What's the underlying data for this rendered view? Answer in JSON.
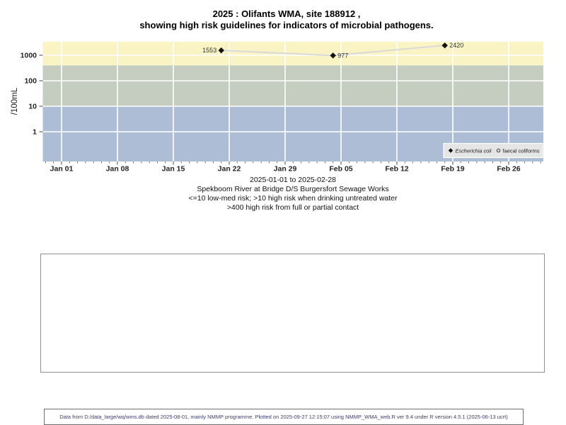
{
  "title": {
    "line1": "2025 : Olifants WMA, site 188912 ,",
    "line2": "showing high risk guidelines for indicators of microbial pathogens."
  },
  "chart_data": {
    "type": "scatter",
    "yscale": "log",
    "ylabel": "/100mL",
    "yticks": [
      1000,
      100,
      10,
      1
    ],
    "xticks": [
      "Jan 01",
      "Jan 08",
      "Jan 15",
      "Jan 22",
      "Jan 29",
      "Feb 05",
      "Feb 12",
      "Feb 19",
      "Feb 26"
    ],
    "x_range": "2025-01-01 to 2025-02-28",
    "grid": true,
    "legend_position": "bottom-right",
    "series": [
      {
        "name": "Escherichia coli",
        "marker": "filled-diamond",
        "line_color": "#d9d9d9",
        "point_color": "#111111",
        "points": [
          {
            "date": "2025-01-21",
            "value": 1553
          },
          {
            "date": "2025-02-04",
            "value": 977
          },
          {
            "date": "2025-02-18",
            "value": 2420
          }
        ]
      },
      {
        "name": "faecal coliforms",
        "marker": "open-circle",
        "points": []
      }
    ],
    "risk_bands": [
      {
        "label": ">400",
        "description": "high risk from full or partial contact",
        "min": 400,
        "max": null,
        "color": "#faf4c4"
      },
      {
        "label": "10-400",
        "description": "high risk when drinking untreated water",
        "min": 10,
        "max": 400,
        "color": "#c4cdc0"
      },
      {
        "label": "<=10",
        "description": "low-med risk",
        "min": null,
        "max": 10,
        "color": "#aebdd6"
      }
    ]
  },
  "captions": [
    "2025-01-01 to 2025-02-28",
    "Spekboom River at Bridge D/S Burgersfort Sewage Works",
    "<=10 low-med risk; >10 high risk when drinking untreated water",
    ">400 high risk from full or partial contact"
  ],
  "footer": {
    "text": "Data from D:/data_large/wq/wms.db dated 2025-08-01, mainly NMMP programme. Plotted on 2025-09-27 12:15:07 using NMMP_WMA_web.R ver 9.4 under R version 4.5.1 (2025-06-13 ucrt)"
  },
  "colors": {
    "gridline": "#ffffff",
    "tick": "#555555",
    "axis_text": "#222222",
    "legend_fill": "#e5e5e5",
    "footer_text": "#3d3d6b"
  }
}
